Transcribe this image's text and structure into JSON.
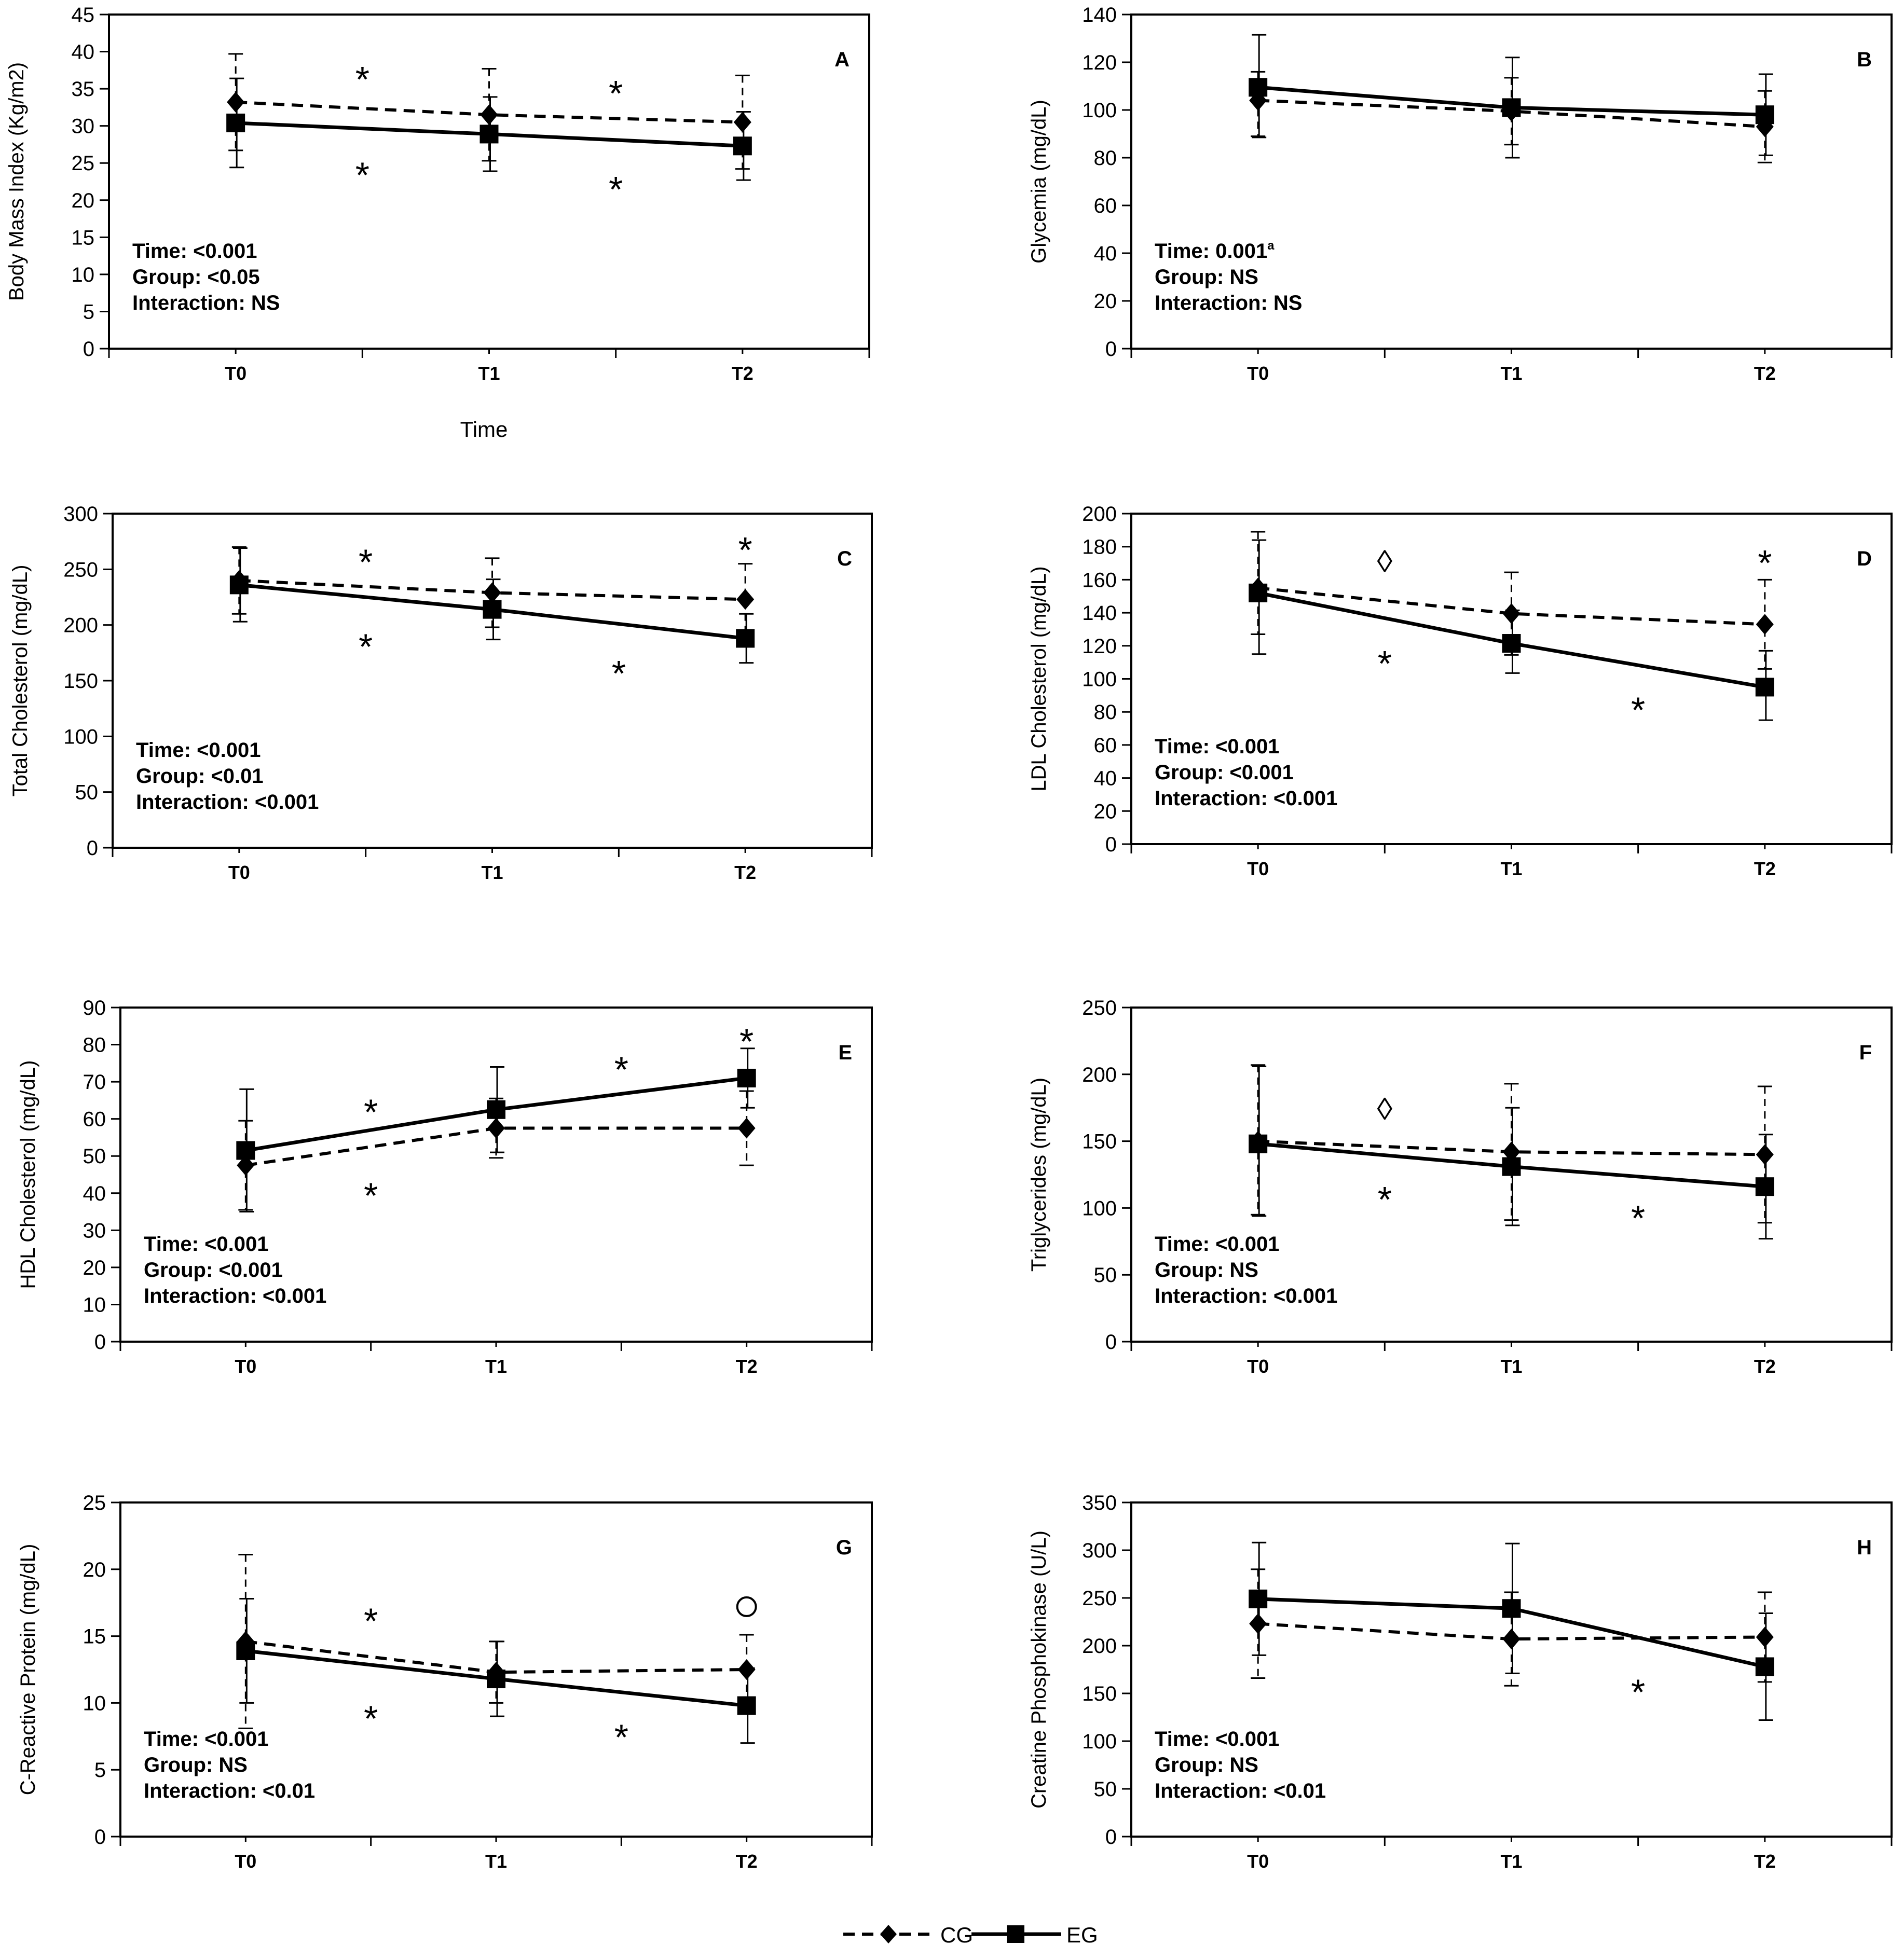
{
  "chart_data": [
    {
      "panel": "A",
      "type": "line",
      "ylabel": "Body Mass Index (Kg/m2)",
      "xlabel": "Time",
      "categories": [
        "T0",
        "T1",
        "T2"
      ],
      "ylim": [
        0,
        45
      ],
      "yticks": [
        0,
        5,
        10,
        15,
        20,
        25,
        30,
        35,
        40,
        45
      ],
      "series": [
        {
          "name": "CG",
          "values": [
            33.2,
            31.5,
            30.5
          ],
          "err_up": [
            6.5,
            6.2,
            6.3
          ],
          "err_down": [
            6.5,
            6.2,
            6.3
          ]
        },
        {
          "name": "EG",
          "values": [
            30.4,
            28.9,
            27.3
          ],
          "err_up": [
            6.0,
            5.0,
            4.6
          ],
          "err_down": [
            6.0,
            5.0,
            4.6
          ]
        }
      ],
      "stats": [
        "Time: <0.001",
        "Group:  <0.05",
        "Interaction: NS"
      ],
      "markers": [
        {
          "symbol": "*",
          "x": 0.5,
          "y": 37.1
        },
        {
          "symbol": "*",
          "x": 0.5,
          "y": 24.2
        },
        {
          "symbol": "*",
          "x": 1.5,
          "y": 35.2
        },
        {
          "symbol": "*",
          "x": 1.5,
          "y": 22.3
        }
      ]
    },
    {
      "panel": "B",
      "type": "line",
      "ylabel": "Glycemia  (mg/dL)",
      "xlabel": "",
      "categories": [
        "T0",
        "T1",
        "T2"
      ],
      "ylim": [
        0,
        140
      ],
      "yticks": [
        0,
        20,
        40,
        60,
        80,
        100,
        120,
        140
      ],
      "series": [
        {
          "name": "CG",
          "values": [
            104,
            99.5,
            93
          ],
          "err_up": [
            12,
            14,
            15
          ],
          "err_down": [
            15,
            14,
            15
          ]
        },
        {
          "name": "EG",
          "values": [
            109.5,
            101,
            98
          ],
          "err_up": [
            22,
            21,
            17
          ],
          "err_down": [
            21,
            21,
            17
          ]
        }
      ],
      "stats": [
        "Time: 0.001",
        "Group:  NS",
        "Interaction: NS"
      ],
      "stats_superscript": "a",
      "markers": []
    },
    {
      "panel": "C",
      "type": "line",
      "ylabel": "Total Cholesterol (mg/dL)",
      "xlabel": "",
      "categories": [
        "T0",
        "T1",
        "T2"
      ],
      "ylim": [
        0,
        300
      ],
      "yticks": [
        0,
        50,
        100,
        150,
        200,
        250,
        300
      ],
      "series": [
        {
          "name": "CG",
          "values": [
            240,
            229,
            223
          ],
          "err_up": [
            30,
            31,
            32
          ],
          "err_down": [
            30,
            31,
            32
          ]
        },
        {
          "name": "EG",
          "values": [
            236,
            214,
            188
          ],
          "err_up": [
            33,
            27,
            22
          ],
          "err_down": [
            33,
            27,
            22
          ]
        }
      ],
      "stats": [
        "Time: <0.001",
        "Group:  <0.01",
        "Interaction: <0.001"
      ],
      "markers": [
        {
          "symbol": "*",
          "x": 0.5,
          "y": 262
        },
        {
          "symbol": "*",
          "x": 0.5,
          "y": 186
        },
        {
          "symbol": "*",
          "x": 1.5,
          "y": 162
        },
        {
          "symbol": "*",
          "x": 2.0,
          "y": 273
        }
      ]
    },
    {
      "panel": "D",
      "type": "line",
      "ylabel": "LDL  Cholesterol (mg/dL)",
      "xlabel": "",
      "categories": [
        "T0",
        "T1",
        "T2"
      ],
      "ylim": [
        0,
        200
      ],
      "yticks": [
        0,
        20,
        40,
        60,
        80,
        100,
        120,
        140,
        160,
        180,
        200
      ],
      "series": [
        {
          "name": "CG",
          "values": [
            155,
            139.5,
            133
          ],
          "err_up": [
            34,
            25,
            27
          ],
          "err_down": [
            28,
            25,
            27
          ]
        },
        {
          "name": "EG",
          "values": [
            152,
            121.5,
            95
          ],
          "err_up": [
            32,
            20,
            22
          ],
          "err_down": [
            37,
            18,
            20
          ]
        }
      ],
      "stats": [
        "Time: <0.001",
        "Group:  <0.001",
        "Interaction: <0.001"
      ],
      "markers": [
        {
          "symbol": "◊",
          "x": 0.5,
          "y": 171
        },
        {
          "symbol": "*",
          "x": 0.5,
          "y": 113
        },
        {
          "symbol": "*",
          "x": 1.5,
          "y": 85
        },
        {
          "symbol": "*",
          "x": 2.0,
          "y": 174
        }
      ]
    },
    {
      "panel": "E",
      "type": "line",
      "ylabel": "HDL  Cholesterol (mg/dL)",
      "xlabel": "",
      "categories": [
        "T0",
        "T1",
        "T2"
      ],
      "ylim": [
        0,
        90
      ],
      "yticks": [
        0,
        10,
        20,
        30,
        40,
        50,
        60,
        70,
        80,
        90
      ],
      "series": [
        {
          "name": "CG",
          "values": [
            47.5,
            57.5,
            57.5
          ],
          "err_up": [
            12,
            8,
            10
          ],
          "err_down": [
            12,
            8,
            10
          ]
        },
        {
          "name": "EG",
          "values": [
            51.5,
            62.5,
            71
          ],
          "err_up": [
            16.5,
            11.5,
            8
          ],
          "err_down": [
            16.5,
            11.5,
            8
          ]
        }
      ],
      "stats": [
        "Time: <0.001",
        "Group:  <0.001",
        "Interaction: <0.001"
      ],
      "markers": [
        {
          "symbol": "*",
          "x": 0.5,
          "y": 63.5
        },
        {
          "symbol": "*",
          "x": 0.5,
          "y": 41
        },
        {
          "symbol": "*",
          "x": 1.5,
          "y": 75
        },
        {
          "symbol": "*",
          "x": 2.0,
          "y": 82.5
        }
      ]
    },
    {
      "panel": "F",
      "type": "line",
      "ylabel": "Triglycerides (mg/dL)",
      "xlabel": "",
      "categories": [
        "T0",
        "T1",
        "T2"
      ],
      "ylim": [
        0,
        250
      ],
      "yticks": [
        0,
        50,
        100,
        150,
        200,
        250
      ],
      "series": [
        {
          "name": "CG",
          "values": [
            150,
            142,
            140
          ],
          "err_up": [
            57,
            51,
            51
          ],
          "err_down": [
            55,
            51,
            51
          ]
        },
        {
          "name": "EG",
          "values": [
            148,
            131,
            116
          ],
          "err_up": [
            58,
            44,
            39
          ],
          "err_down": [
            54,
            44,
            39
          ]
        }
      ],
      "stats": [
        "Time: <0.001",
        "Group:  NS",
        "Interaction: <0.001"
      ],
      "markers": [
        {
          "symbol": "◊",
          "x": 0.5,
          "y": 174
        },
        {
          "symbol": "*",
          "x": 0.5,
          "y": 111
        },
        {
          "symbol": "*",
          "x": 1.5,
          "y": 97
        }
      ]
    },
    {
      "panel": "G",
      "type": "line",
      "ylabel": "C-Reactive Protein (mg/dL)",
      "xlabel": "",
      "categories": [
        "T0",
        "T1",
        "T2"
      ],
      "ylim": [
        0,
        25
      ],
      "yticks": [
        0,
        5,
        10,
        15,
        20,
        25
      ],
      "series": [
        {
          "name": "CG",
          "values": [
            14.6,
            12.3,
            12.5
          ],
          "err_up": [
            6.5,
            2.3,
            2.6
          ],
          "err_down": [
            6.5,
            2.3,
            2.6
          ]
        },
        {
          "name": "EG",
          "values": [
            13.9,
            11.8,
            9.8
          ],
          "err_up": [
            3.9,
            2.8,
            2.8
          ],
          "err_down": [
            3.9,
            2.8,
            2.8
          ]
        }
      ],
      "stats": [
        "Time: <0.001",
        "Group:  NS",
        "Interaction: <0.01"
      ],
      "markers": [
        {
          "symbol": "*",
          "x": 0.5,
          "y": 16.6
        },
        {
          "symbol": "*",
          "x": 0.5,
          "y": 9.3
        },
        {
          "symbol": "*",
          "x": 1.5,
          "y": 7.9
        },
        {
          "symbol": "○",
          "x": 2.0,
          "y": 17.2
        }
      ]
    },
    {
      "panel": "H",
      "type": "line",
      "ylabel": "Creatine Phosphokinase (U/L)",
      "xlabel": "",
      "categories": [
        "T0",
        "T1",
        "T2"
      ],
      "ylim": [
        0,
        350
      ],
      "yticks": [
        0,
        50,
        100,
        150,
        200,
        250,
        300,
        350
      ],
      "series": [
        {
          "name": "CG",
          "values": [
            223,
            207,
            209
          ],
          "err_up": [
            57,
            49,
            47
          ],
          "err_down": [
            57,
            49,
            47
          ]
        },
        {
          "name": "EG",
          "values": [
            249,
            239,
            178
          ],
          "err_up": [
            59,
            68,
            56
          ],
          "err_down": [
            59,
            68,
            56
          ]
        }
      ],
      "stats": [
        "Time: <0.001",
        "Group:  NS",
        "Interaction: <0.01"
      ],
      "markers": [
        {
          "symbol": "*",
          "x": 1.5,
          "y": 158
        }
      ]
    }
  ],
  "legend": {
    "position": "bottom-center",
    "entries": [
      {
        "name": "CG",
        "line": "dashed",
        "marker": "diamond"
      },
      {
        "name": "EG",
        "line": "solid",
        "marker": "square"
      }
    ]
  }
}
